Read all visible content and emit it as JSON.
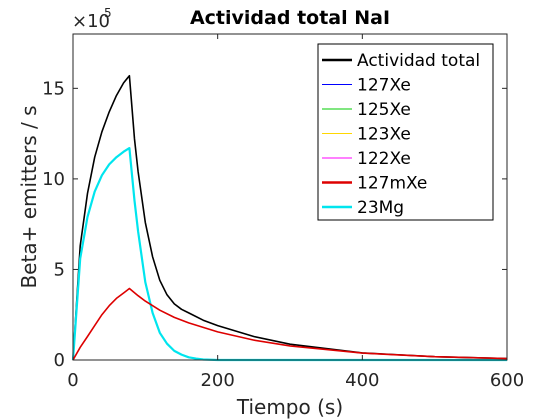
{
  "chart_data": {
    "type": "line",
    "title": "Actividad total  NaI",
    "xlabel": "Tiempo (s)",
    "ylabel": "Beta+ emitters / s",
    "exponent_label": "×10",
    "exponent_power": "5",
    "xlim": [
      0,
      600
    ],
    "ylim": [
      0,
      18
    ],
    "x_ticks": [
      0,
      200,
      400,
      600
    ],
    "x_tick_labels": [
      "0",
      "200",
      "400",
      "600"
    ],
    "y_ticks": [
      0,
      5,
      10,
      15
    ],
    "y_tick_labels": [
      "0",
      "5",
      "10",
      "15"
    ],
    "grid": false,
    "legend_position": "top-right",
    "series": [
      {
        "name": "Actividad total",
        "color": "#000000",
        "x": [
          0,
          10,
          20,
          30,
          40,
          50,
          60,
          70,
          78,
          85,
          90,
          100,
          110,
          120,
          130,
          140,
          150,
          160,
          180,
          200,
          250,
          300,
          400,
          500,
          600
        ],
        "y": [
          0,
          6.3,
          9.2,
          11.2,
          12.6,
          13.7,
          14.6,
          15.3,
          15.7,
          12.2,
          10.4,
          7.6,
          5.7,
          4.4,
          3.6,
          3.1,
          2.8,
          2.6,
          2.2,
          1.9,
          1.3,
          0.87,
          0.39,
          0.18,
          0.08
        ]
      },
      {
        "name": "127Xe",
        "color": "#0000ff",
        "x": [
          0,
          600
        ],
        "y": [
          0,
          0
        ]
      },
      {
        "name": "125Xe",
        "color": "#00cc00",
        "x": [
          0,
          600
        ],
        "y": [
          0,
          0
        ]
      },
      {
        "name": "123Xe",
        "color": "#ffd700",
        "x": [
          0,
          600
        ],
        "y": [
          0,
          0
        ]
      },
      {
        "name": "122Xe",
        "color": "#ff00ff",
        "x": [
          0,
          600
        ],
        "y": [
          0,
          0
        ]
      },
      {
        "name": "127mXe",
        "color": "#dd0000",
        "x": [
          0,
          10,
          20,
          30,
          40,
          50,
          60,
          70,
          78,
          90,
          100,
          120,
          140,
          160,
          180,
          200,
          250,
          300,
          400,
          500,
          600
        ],
        "y": [
          0,
          0.7,
          1.3,
          1.9,
          2.5,
          3.0,
          3.4,
          3.7,
          3.95,
          3.55,
          3.25,
          2.75,
          2.35,
          2.05,
          1.8,
          1.55,
          1.1,
          0.78,
          0.38,
          0.18,
          0.08
        ]
      },
      {
        "name": "23Mg",
        "color": "#00e5ee",
        "x": [
          0,
          10,
          20,
          30,
          40,
          50,
          60,
          70,
          78,
          85,
          90,
          100,
          110,
          120,
          130,
          140,
          150,
          160,
          170,
          180,
          200,
          600
        ],
        "y": [
          0,
          5.6,
          7.9,
          9.3,
          10.2,
          10.8,
          11.2,
          11.5,
          11.7,
          8.8,
          7.1,
          4.3,
          2.6,
          1.5,
          0.9,
          0.5,
          0.3,
          0.15,
          0.08,
          0.03,
          0.0,
          0.0
        ]
      }
    ]
  }
}
